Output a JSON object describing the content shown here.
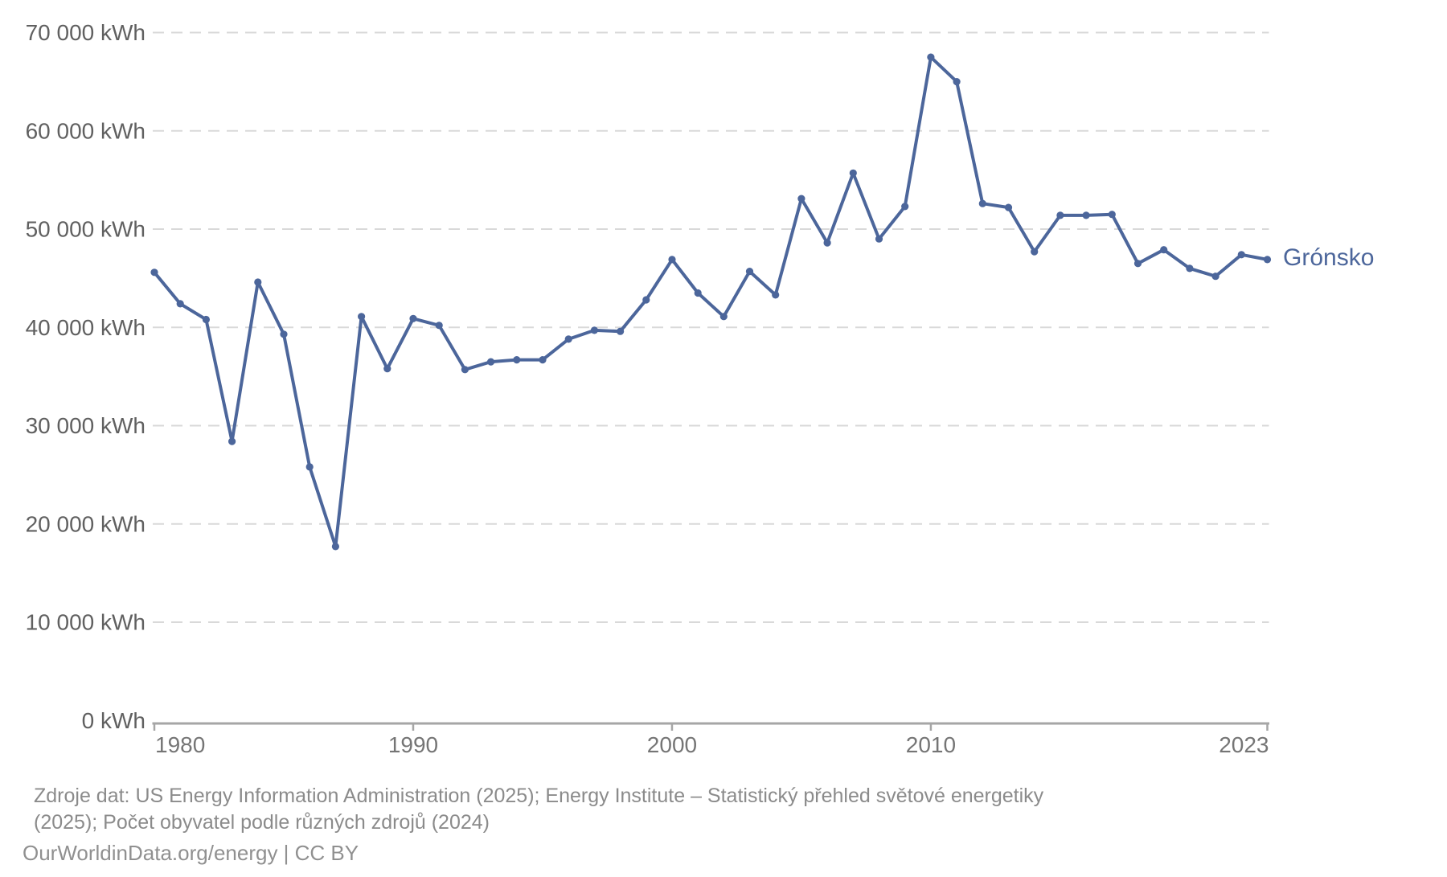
{
  "chart_data": {
    "type": "line",
    "series_label": "Grónsko",
    "unit": "kWh",
    "x": [
      1980,
      1981,
      1982,
      1983,
      1984,
      1985,
      1986,
      1987,
      1988,
      1989,
      1990,
      1991,
      1992,
      1993,
      1994,
      1995,
      1996,
      1997,
      1998,
      1999,
      2000,
      2001,
      2002,
      2003,
      2004,
      2005,
      2006,
      2007,
      2008,
      2009,
      2010,
      2011,
      2012,
      2013,
      2014,
      2015,
      2016,
      2017,
      2018,
      2019,
      2020,
      2021,
      2022,
      2023
    ],
    "values": [
      45600,
      42400,
      40800,
      28400,
      44600,
      39300,
      25800,
      17700,
      41100,
      35800,
      40900,
      40200,
      35700,
      36500,
      36700,
      36700,
      38800,
      39700,
      39600,
      42800,
      46900,
      43500,
      41100,
      45700,
      43300,
      53100,
      48600,
      55700,
      49000,
      52300,
      67500,
      65000,
      52600,
      52200,
      47700,
      51400,
      51400,
      51500,
      46500,
      47900,
      46000,
      45200,
      47400,
      46900
    ],
    "xlim": [
      1980,
      2023
    ],
    "ylim": [
      0,
      70000
    ],
    "ytick_step": 10000,
    "ytick_labels": [
      "0 kWh",
      "10 000 kWh",
      "20 000 kWh",
      "30 000 kWh",
      "40 000 kWh",
      "50 000 kWh",
      "60 000 kWh",
      "70 000 kWh"
    ],
    "xticks": [
      1980,
      1990,
      2000,
      2010,
      2023
    ],
    "xtick_labels": [
      "1980",
      "1990",
      "2000",
      "2010",
      "2023"
    ],
    "grid": "horizontal-dashed",
    "legend_position": "right-of-line",
    "line_color": "#4c669b",
    "marker_color": "#4c669b",
    "gridline_color": "#d9d9d9",
    "axis_color": "#a6a6a6",
    "ytick_label_color": "#606060",
    "xtick_label_color": "#757575"
  },
  "footer": {
    "sources_line1": "Zdroje dat: US Energy Information Administration (2025); Energy Institute – Statistický přehled světové energetiky",
    "sources_line2": "(2025); Počet obyvatel podle různých zdrojů (2024)",
    "attribution": "OurWorldinData.org/energy | CC BY"
  }
}
